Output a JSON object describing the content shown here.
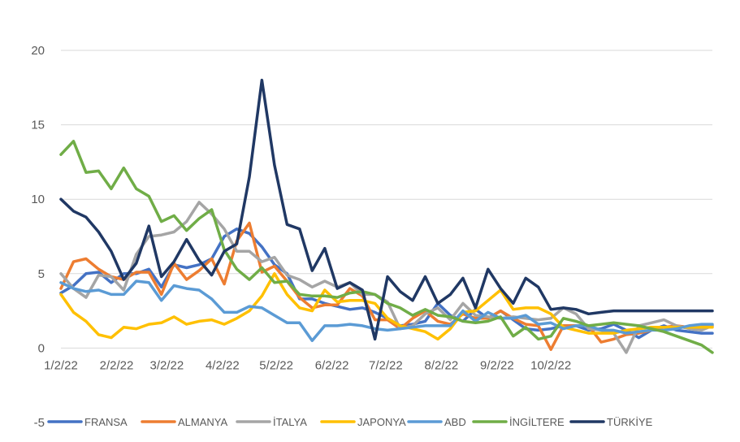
{
  "chart_data": {
    "type": "line",
    "title": "",
    "xlabel": "",
    "ylabel": "",
    "ylim": [
      -5,
      20
    ],
    "yticks": [
      -5,
      0,
      5,
      10,
      15,
      20
    ],
    "xlim": [
      "2022-01-02",
      "2022-12-31"
    ],
    "xtick_dates": [
      "2022-01-02",
      "2022-02-02",
      "2022-03-02",
      "2022-04-02",
      "2022-05-02",
      "2022-06-02",
      "2022-07-02",
      "2022-08-02",
      "2022-09-02",
      "2022-10-02"
    ],
    "xtick_labels": [
      "1/2/22",
      "2/2/22",
      "3/2/22",
      "4/2/22",
      "5/2/22",
      "6/2/22",
      "7/2/22",
      "8/2/22",
      "9/2/22",
      "10/2/22"
    ],
    "grid": true,
    "legend_position": "bottom",
    "x": [
      "2022-01-02",
      "2022-01-09",
      "2022-01-16",
      "2022-01-23",
      "2022-01-30",
      "2022-02-06",
      "2022-02-13",
      "2022-02-20",
      "2022-02-27",
      "2022-03-06",
      "2022-03-13",
      "2022-03-20",
      "2022-03-27",
      "2022-04-03",
      "2022-04-10",
      "2022-04-17",
      "2022-04-24",
      "2022-05-01",
      "2022-05-08",
      "2022-05-15",
      "2022-05-22",
      "2022-05-29",
      "2022-06-05",
      "2022-06-12",
      "2022-06-19",
      "2022-06-26",
      "2022-07-03",
      "2022-07-10",
      "2022-07-17",
      "2022-07-24",
      "2022-07-31",
      "2022-08-07",
      "2022-08-14",
      "2022-08-21",
      "2022-08-28",
      "2022-09-04",
      "2022-09-11",
      "2022-09-18",
      "2022-09-25",
      "2022-10-02",
      "2022-10-09",
      "2022-10-16",
      "2022-10-23",
      "2022-10-30",
      "2022-11-06",
      "2022-11-13",
      "2022-11-20",
      "2022-11-27",
      "2022-12-04",
      "2022-12-11",
      "2022-12-18",
      "2022-12-25",
      "2022-12-31"
    ],
    "series": [
      {
        "name": "FRANSA",
        "color": "#4472C4",
        "values": [
          3.7,
          4.2,
          5.0,
          5.1,
          4.4,
          5.0,
          5.0,
          5.3,
          4.1,
          5.6,
          5.4,
          5.6,
          6.0,
          7.5,
          8.0,
          7.7,
          6.8,
          5.6,
          5.0,
          3.3,
          3.3,
          3.0,
          2.8,
          2.6,
          2.7,
          2.4,
          2.0,
          1.5,
          1.6,
          1.8,
          3.0,
          2.2,
          1.8,
          2.6,
          2.0,
          2.5,
          1.9,
          1.3,
          1.2,
          1.3,
          1.5,
          1.5,
          1.2,
          1.3,
          1.6,
          1.2,
          0.7,
          1.2,
          1.5,
          1.2,
          1.1,
          1.0,
          1.0
        ]
      },
      {
        "name": "ALMANYA",
        "color": "#ED7D31",
        "values": [
          4.0,
          5.8,
          6.0,
          5.3,
          4.8,
          4.6,
          5.1,
          5.1,
          3.6,
          5.7,
          4.6,
          5.2,
          6.0,
          4.3,
          7.2,
          8.4,
          5.1,
          5.5,
          4.5,
          3.4,
          2.7,
          2.9,
          2.9,
          4.0,
          3.5,
          1.9,
          1.9,
          1.3,
          2.0,
          2.5,
          1.8,
          1.6,
          2.3,
          2.0,
          2.0,
          2.5,
          2.0,
          1.6,
          1.5,
          -0.1,
          1.5,
          1.5,
          1.5,
          0.4,
          0.6,
          0.9,
          1.0,
          1.2,
          1.4,
          1.5,
          1.4,
          1.5,
          1.5
        ]
      },
      {
        "name": "İTALYA",
        "color": "#A5A5A5",
        "values": [
          5.0,
          4.0,
          3.4,
          4.9,
          4.8,
          3.9,
          6.3,
          7.5,
          7.6,
          7.8,
          8.5,
          9.8,
          9.0,
          8.0,
          6.5,
          6.5,
          5.8,
          6.1,
          4.9,
          4.6,
          4.1,
          4.5,
          4.1,
          4.4,
          3.6,
          3.6,
          3.1,
          1.3,
          1.5,
          2.3,
          2.7,
          1.9,
          3.0,
          2.2,
          2.1,
          2.0,
          2.1,
          2.0,
          1.9,
          2.0,
          2.7,
          2.3,
          1.3,
          1.2,
          1.0,
          -0.3,
          1.5,
          1.7,
          1.9,
          1.5,
          1.3,
          1.2,
          1.5
        ]
      },
      {
        "name": "JAPONYA",
        "color": "#FFC000",
        "values": [
          3.6,
          2.4,
          1.8,
          0.9,
          0.7,
          1.4,
          1.3,
          1.6,
          1.7,
          2.1,
          1.6,
          1.8,
          1.9,
          1.6,
          2.0,
          2.5,
          3.5,
          5.0,
          3.6,
          2.7,
          2.5,
          3.9,
          3.1,
          3.2,
          3.2,
          3.0,
          2.0,
          1.5,
          1.3,
          1.1,
          0.6,
          1.3,
          2.4,
          2.5,
          3.2,
          3.9,
          2.6,
          2.7,
          2.7,
          2.3,
          1.4,
          1.2,
          1.0,
          1.0,
          1.0,
          1.2,
          1.3,
          1.4,
          1.4,
          1.4,
          1.4,
          1.4,
          1.4
        ]
      },
      {
        "name": "ABD",
        "color": "#5B9BD5",
        "values": [
          4.4,
          4.0,
          3.8,
          3.9,
          3.6,
          3.6,
          4.5,
          4.4,
          3.2,
          4.2,
          4.0,
          3.9,
          3.3,
          2.4,
          2.4,
          2.8,
          2.7,
          2.2,
          1.7,
          1.7,
          0.5,
          1.5,
          1.5,
          1.6,
          1.5,
          1.3,
          1.2,
          1.3,
          1.4,
          1.5,
          1.5,
          1.5,
          2.5,
          1.8,
          2.4,
          2.0,
          2.0,
          2.2,
          1.6,
          1.7,
          1.3,
          1.5,
          1.5,
          1.2,
          1.2,
          1.0,
          1.1,
          1.2,
          1.2,
          1.3,
          1.5,
          1.6,
          1.6
        ]
      },
      {
        "name": "İNGİLTERE",
        "color": "#70AD47",
        "values": [
          13.0,
          13.9,
          11.8,
          11.9,
          10.7,
          12.1,
          10.7,
          10.2,
          8.5,
          8.9,
          7.9,
          8.7,
          9.3,
          6.6,
          5.3,
          4.6,
          5.4,
          4.4,
          4.5,
          3.6,
          3.5,
          3.5,
          3.4,
          3.7,
          3.8,
          3.6,
          3.0,
          2.7,
          2.2,
          2.6,
          2.2,
          2.1,
          1.8,
          1.7,
          1.8,
          2.1,
          0.8,
          1.4,
          0.6,
          0.8,
          2.0,
          1.8,
          1.5,
          1.6,
          1.7,
          1.6,
          1.5,
          1.3,
          1.1,
          0.8,
          0.5,
          0.2,
          -0.3
        ]
      },
      {
        "name": "TÜRKİYE",
        "color": "#203864",
        "values": [
          10.0,
          9.2,
          8.8,
          7.8,
          6.5,
          4.6,
          5.7,
          8.2,
          4.8,
          5.8,
          7.3,
          5.9,
          4.9,
          6.5,
          7.0,
          11.5,
          18.0,
          12.3,
          8.3,
          8.0,
          5.2,
          6.7,
          4.0,
          4.4,
          3.9,
          0.6,
          4.8,
          3.8,
          3.2,
          4.8,
          3.0,
          3.6,
          4.7,
          2.7,
          5.3,
          4.0,
          3.0,
          4.7,
          4.1,
          2.6,
          2.7,
          2.6,
          2.3,
          2.4,
          2.5,
          2.5,
          2.5,
          2.5,
          2.5,
          2.5,
          2.5,
          2.5,
          2.5
        ]
      }
    ]
  }
}
